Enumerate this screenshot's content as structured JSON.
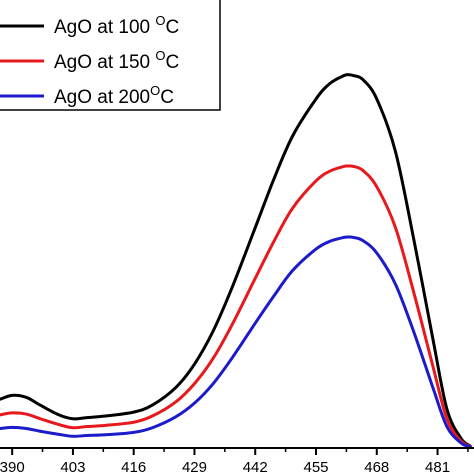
{
  "chart_data": {
    "type": "line",
    "xlabel": "",
    "ylabel": "",
    "xlim": [
      387.4,
      488.8
    ],
    "ylim": [
      0,
      1
    ],
    "x_ticks": [
      "390",
      "403",
      "416",
      "429",
      "442",
      "455",
      "468",
      "481"
    ],
    "legend": {
      "position": "top-left"
    },
    "grid": false,
    "series": [
      {
        "name": "AgO at 100 °C",
        "legend": {
          "prefix": "AgO at 100 ",
          "sup": "O",
          "suffix": "C"
        },
        "color": "#000000",
        "x": [
          387.4,
          390,
          393,
          396,
          400,
          403,
          406,
          410,
          416,
          420,
          425,
          429,
          433,
          437,
          442,
          446,
          450,
          455,
          458,
          461,
          462,
          463,
          465,
          468,
          472,
          476,
          480,
          483,
          486,
          488
        ],
        "y": [
          0.125,
          0.135,
          0.13,
          0.11,
          0.085,
          0.075,
          0.078,
          0.082,
          0.092,
          0.11,
          0.155,
          0.215,
          0.3,
          0.41,
          0.565,
          0.69,
          0.8,
          0.895,
          0.935,
          0.955,
          0.957,
          0.955,
          0.945,
          0.895,
          0.76,
          0.53,
          0.28,
          0.1,
          0.025,
          0.005
        ]
      },
      {
        "name": "AgO at 150 °C",
        "legend": {
          "prefix": "AgO at 150 ",
          "sup": "O",
          "suffix": "C"
        },
        "color": "#e8191d",
        "x": [
          387.4,
          390,
          393,
          396,
          400,
          403,
          406,
          410,
          416,
          420,
          425,
          429,
          433,
          437,
          442,
          446,
          450,
          455,
          458,
          461,
          462,
          463,
          465,
          468,
          472,
          476,
          480,
          483,
          486,
          488
        ],
        "y": [
          0.085,
          0.09,
          0.087,
          0.075,
          0.06,
          0.052,
          0.055,
          0.058,
          0.066,
          0.082,
          0.118,
          0.165,
          0.23,
          0.315,
          0.435,
          0.53,
          0.615,
          0.685,
          0.71,
          0.722,
          0.723,
          0.722,
          0.712,
          0.67,
          0.565,
          0.395,
          0.21,
          0.075,
          0.018,
          0.004
        ]
      },
      {
        "name": "AgO at 200 °C",
        "legend": {
          "prefix": "AgO at  200",
          "sup": "O",
          "suffix": "C"
        },
        "color": "#1b1bcc",
        "x": [
          387.4,
          390,
          393,
          396,
          400,
          403,
          406,
          410,
          416,
          420,
          425,
          429,
          433,
          437,
          442,
          446,
          450,
          455,
          458,
          461,
          462,
          463,
          465,
          468,
          472,
          476,
          480,
          483,
          486,
          488
        ],
        "y": [
          0.05,
          0.053,
          0.05,
          0.043,
          0.035,
          0.03,
          0.032,
          0.034,
          0.04,
          0.052,
          0.08,
          0.115,
          0.165,
          0.23,
          0.32,
          0.39,
          0.455,
          0.51,
          0.53,
          0.54,
          0.541,
          0.54,
          0.532,
          0.5,
          0.42,
          0.295,
          0.155,
          0.055,
          0.013,
          0.003
        ]
      }
    ]
  }
}
